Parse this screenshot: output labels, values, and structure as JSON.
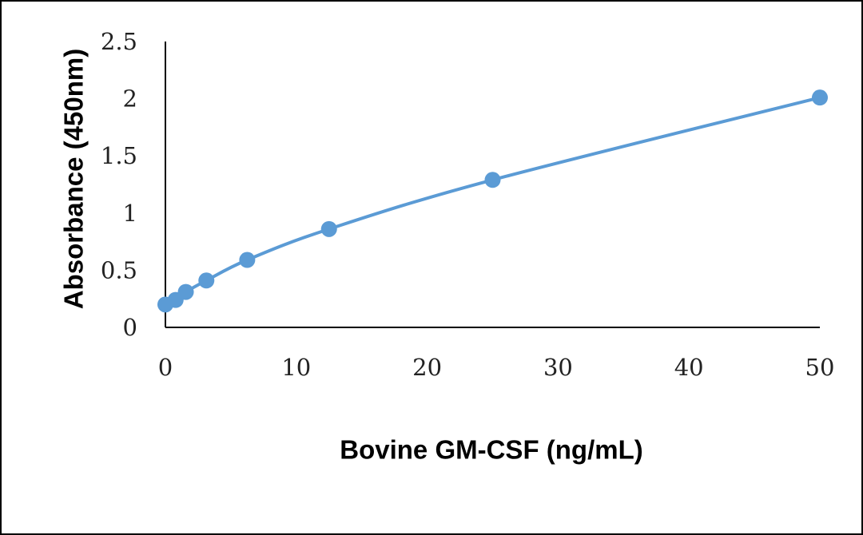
{
  "chart_data": {
    "type": "line",
    "title": "",
    "xlabel": "Bovine GM-CSF (ng/mL)",
    "ylabel": "Absorbance (450nm)",
    "xlim": [
      0,
      50
    ],
    "ylim": [
      0,
      2.5
    ],
    "xticks": [
      0,
      10,
      20,
      30,
      40,
      50
    ],
    "yticks": [
      "0",
      "0.5",
      "1",
      "1.5",
      "2",
      "2.5"
    ],
    "xtick_labels": [
      "0",
      "10",
      "20",
      "30",
      "40",
      "50"
    ],
    "grid": false,
    "legend": "none",
    "smooth": true,
    "series": [
      {
        "x": [
          0,
          0.78,
          1.56,
          3.13,
          6.25,
          12.5,
          25,
          50
        ],
        "y": [
          0.2,
          0.24,
          0.31,
          0.41,
          0.59,
          0.86,
          1.29,
          2.01
        ],
        "color": "#5b9bd5"
      }
    ]
  }
}
